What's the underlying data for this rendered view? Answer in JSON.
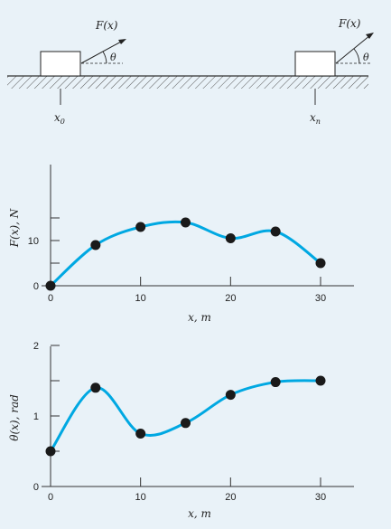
{
  "diagram": {
    "force_label": "F(x)",
    "angle_label": "θ",
    "start_label": "x",
    "start_sub": "0",
    "end_label": "x",
    "end_sub": "n"
  },
  "colors": {
    "background": "#e9f2f8",
    "curve": "#00a8e2",
    "point": "#1a1a1a",
    "block_fill": "#ffffff",
    "axis": "#333333"
  },
  "chart_data": [
    {
      "type": "line",
      "title": "",
      "ylabel": "F(x), N",
      "xlabel": "x, m",
      "x": [
        0,
        5,
        10,
        15,
        20,
        25,
        30
      ],
      "series": [
        {
          "values": [
            0.0,
            9.0,
            13.0,
            14.0,
            10.5,
            12.0,
            5.0
          ]
        }
      ],
      "xticks": [
        "0",
        "10",
        "20",
        "30"
      ],
      "yticks": [
        "0",
        "10"
      ],
      "xlim": [
        0,
        30
      ],
      "ylim": [
        0,
        14
      ],
      "grid": false,
      "smooth": true
    },
    {
      "type": "line",
      "title": "",
      "ylabel": "θ(x), rad",
      "xlabel": "x, m",
      "x": [
        0,
        5,
        10,
        15,
        20,
        25,
        30
      ],
      "series": [
        {
          "values": [
            0.5,
            1.4,
            0.75,
            0.9,
            1.3,
            1.48,
            1.5
          ]
        }
      ],
      "xticks": [
        "0",
        "10",
        "20",
        "30"
      ],
      "yticks": [
        "0",
        "1",
        "2"
      ],
      "xlim": [
        0,
        30
      ],
      "ylim": [
        0,
        2
      ],
      "grid": false,
      "smooth": true
    }
  ]
}
